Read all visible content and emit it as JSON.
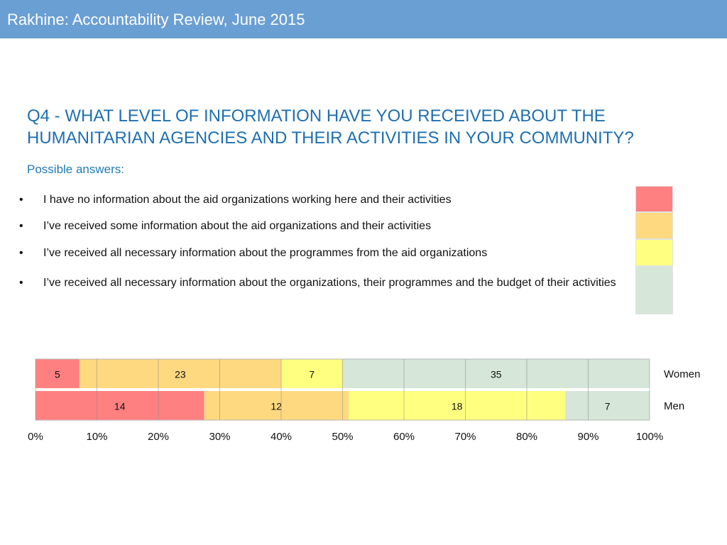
{
  "header": {
    "title": "Rakhine: Accountability Review, June 2015"
  },
  "question": "Q4 - WHAT LEVEL OF INFORMATION HAVE YOU RECEIVED ABOUT THE HUMANITARIAN AGENCIES AND THEIR ACTIVITIES IN YOUR COMMUNITY?",
  "possible_answers_label": "Possible answers:",
  "answers": [
    {
      "bullet": "•",
      "text": "I have no information about the aid organizations working here and their activities",
      "color": "#ff8080"
    },
    {
      "bullet": "•",
      "text": "I’ve received some information about the aid organizations and their activities",
      "color": "#ffd980"
    },
    {
      "bullet": "•",
      "text": "I’ve received all necessary information about the programmes from the aid organizations",
      "color": "#ffff80"
    },
    {
      "bullet": "•",
      "text": "I’ve received all necessary information about the organizations, their programmes and the budget of their activities",
      "color": "#d6e6d9"
    }
  ],
  "chart_data": {
    "type": "bar",
    "orientation": "horizontal",
    "stacked": "percent",
    "categories": [
      "Women",
      "Men"
    ],
    "series": [
      {
        "values": [
          5,
          14
        ],
        "color": "#ff8080"
      },
      {
        "values": [
          23,
          12
        ],
        "color": "#ffd980"
      },
      {
        "values": [
          7,
          18
        ],
        "color": "#ffff80"
      },
      {
        "values": [
          35,
          7
        ],
        "color": "#d6e6d9"
      }
    ],
    "x_ticks": [
      "0%",
      "10%",
      "20%",
      "30%",
      "40%",
      "50%",
      "60%",
      "70%",
      "80%",
      "90%",
      "100%"
    ],
    "xlim": [
      0,
      100
    ],
    "grid": true,
    "legend": "top-right"
  }
}
